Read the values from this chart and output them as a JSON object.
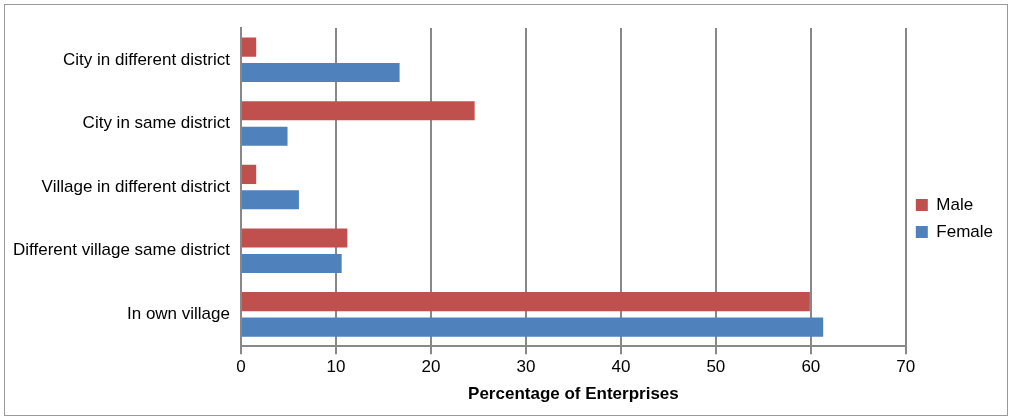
{
  "chart_data": {
    "type": "bar",
    "orientation": "horizontal",
    "xlabel": "Percentage of Enterprises",
    "categories": [
      "City in different district",
      "City in same district",
      "Village in different district",
      "Different village same district",
      "In own village"
    ],
    "series": [
      {
        "name": "Male",
        "color": "#c0504d",
        "values": [
          1.6,
          24.6,
          1.6,
          11.2,
          59.9
        ]
      },
      {
        "name": "Female",
        "color": "#4f81bd",
        "values": [
          16.7,
          4.9,
          6.1,
          10.6,
          61.3
        ]
      }
    ],
    "xlim": [
      0,
      70
    ],
    "xticks": [
      0,
      10,
      20,
      30,
      40,
      50,
      60,
      70
    ],
    "grid": "x",
    "legend": "right"
  }
}
